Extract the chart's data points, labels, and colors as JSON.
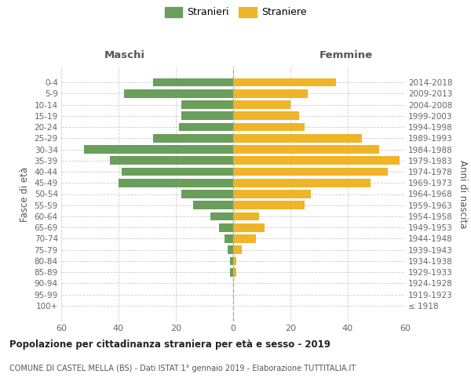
{
  "age_groups": [
    "100+",
    "95-99",
    "90-94",
    "85-89",
    "80-84",
    "75-79",
    "70-74",
    "65-69",
    "60-64",
    "55-59",
    "50-54",
    "45-49",
    "40-44",
    "35-39",
    "30-34",
    "25-29",
    "20-24",
    "15-19",
    "10-14",
    "5-9",
    "0-4"
  ],
  "birth_years": [
    "≤ 1918",
    "1919-1923",
    "1924-1928",
    "1929-1933",
    "1934-1938",
    "1939-1943",
    "1944-1948",
    "1949-1953",
    "1954-1958",
    "1959-1963",
    "1964-1968",
    "1969-1973",
    "1974-1978",
    "1979-1983",
    "1984-1988",
    "1989-1993",
    "1994-1998",
    "1999-2003",
    "2004-2008",
    "2009-2013",
    "2014-2018"
  ],
  "maschi": [
    0,
    0,
    0,
    1,
    1,
    2,
    3,
    5,
    8,
    14,
    18,
    40,
    39,
    43,
    52,
    28,
    19,
    18,
    18,
    38,
    28
  ],
  "femmine": [
    0,
    0,
    0,
    1,
    1,
    3,
    8,
    11,
    9,
    25,
    27,
    48,
    54,
    58,
    51,
    45,
    25,
    23,
    20,
    26,
    36
  ],
  "male_color": "#6a9e5b",
  "female_color": "#f0b429",
  "background_color": "#ffffff",
  "grid_color": "#cccccc",
  "title": "Popolazione per cittadinanza straniera per età e sesso - 2019",
  "subtitle": "COMUNE DI CASTEL MELLA (BS) - Dati ISTAT 1° gennaio 2019 - Elaborazione TUTTITALIA.IT",
  "legend_male": "Stranieri",
  "legend_female": "Straniere",
  "header_left": "Maschi",
  "header_right": "Femmine",
  "ylabel_left": "Fasce di età",
  "ylabel_right": "Anni di nascita",
  "xlim": 60,
  "center_line_color": "#aaaaaa"
}
